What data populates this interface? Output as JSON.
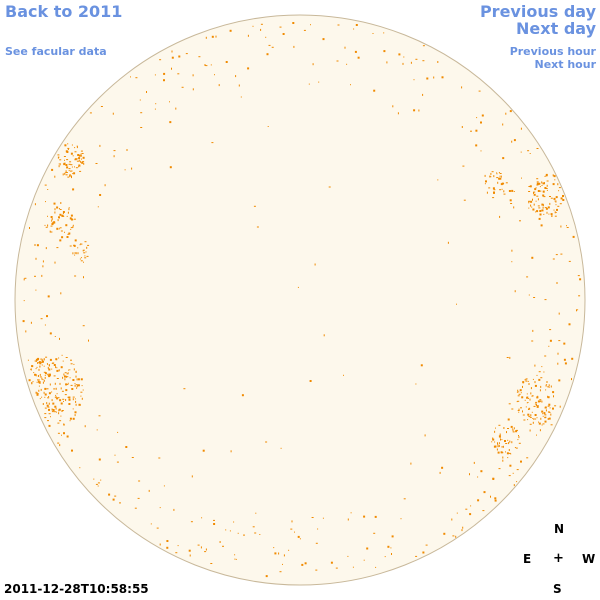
{
  "nav": {
    "back_label": "Back to 2011",
    "facular_label": "See facular data",
    "prev_day_label": "Previous day",
    "next_day_label": "Next day",
    "prev_hour_label": "Previous hour",
    "next_hour_label": "Next hour"
  },
  "compass": {
    "north": "N",
    "east": "E",
    "center": "+",
    "west": "W",
    "south": "S"
  },
  "timestamp": "2011-12-28T10:58:55",
  "colors": {
    "link": "#6a92e0",
    "disc_fill": "#fdf8ec",
    "disc_edge": "#c8b89a",
    "facula": "#f08a00"
  }
}
